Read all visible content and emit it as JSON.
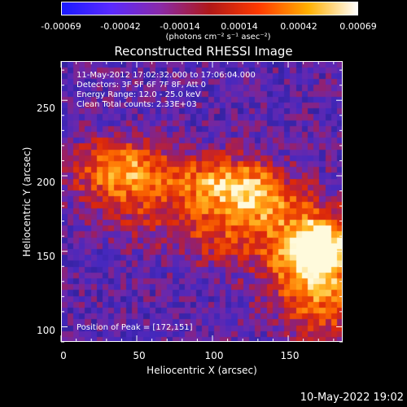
{
  "colorbar": {
    "ticks": [
      "-0.00069",
      "-0.00042",
      "-0.00014",
      "0.00014",
      "0.00042",
      "0.00069"
    ],
    "units": "(photons cm⁻² s⁻¹ asec⁻²)",
    "colors": [
      "#1a1aff",
      "#5a2aff",
      "#8a2aa8",
      "#b01818",
      "#ff3a00",
      "#ffb000",
      "#ffffff"
    ]
  },
  "title": "Reconstructed RHESSI Image",
  "info": {
    "line1": "11-May-2012 17:02:32.000 to 17:06:04.000",
    "line2": "Detectors: 3F 5F 6F 7F 8F, Att 0",
    "line3": "Energy Range: 12.0 - 25.0 keV",
    "line4": "Clean     Total counts: 2.33E+03"
  },
  "peak": "Position of Peak = [172,151]",
  "axes": {
    "xlabel": "Heliocentric X (arcsec)",
    "ylabel": "Heliocentric Y (arcsec)",
    "xticks": [
      "0",
      "50",
      "100",
      "150"
    ],
    "yticks": [
      "250",
      "200",
      "150",
      "100"
    ]
  },
  "datestamp": "10-May-2022 19:02",
  "chart_data": {
    "type": "heatmap",
    "x_range": [
      0,
      186
    ],
    "y_range": [
      90,
      276
    ],
    "peak": [
      172,
      151
    ],
    "colormap": "blue-purple-red-orange-yellow-white"
  }
}
